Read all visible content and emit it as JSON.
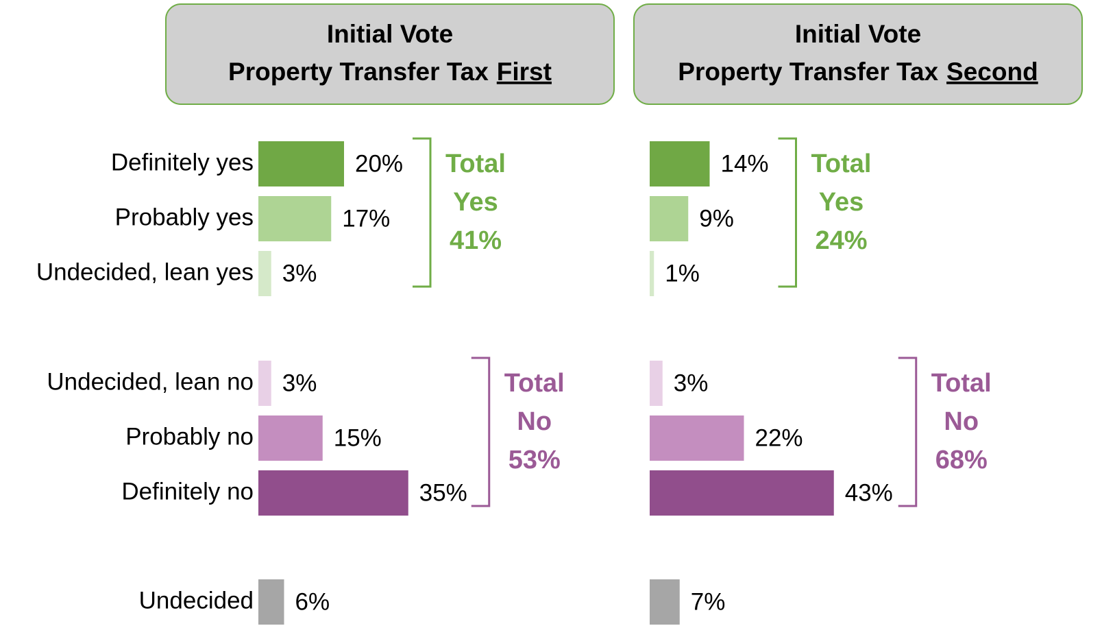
{
  "chart_data": [
    {
      "type": "bar",
      "title": "Initial Vote",
      "subtitle": "Property Transfer Tax",
      "subtitle_emphasis": "First",
      "categories": [
        "Definitely yes",
        "Probably yes",
        "Undecided, lean yes",
        "Undecided, lean no",
        "Probably no",
        "Definitely no",
        "Undecided"
      ],
      "values": [
        20,
        17,
        3,
        3,
        15,
        35,
        6
      ],
      "value_labels": [
        "20%",
        "17%",
        "3%",
        "3%",
        "15%",
        "35%",
        "6%"
      ],
      "colors": [
        "#70a845",
        "#aed494",
        "#d5e9c9",
        "#e8d0e6",
        "#c48ebf",
        "#914e8c",
        "#a6a6a6"
      ],
      "totals": [
        {
          "lines": [
            "Total",
            "Yes"
          ],
          "value": 41,
          "value_label": "41%",
          "color": "#70ad47"
        },
        {
          "lines": [
            "Total",
            "No"
          ],
          "value": 53,
          "value_label": "53%",
          "color": "#9b5a96"
        }
      ]
    },
    {
      "type": "bar",
      "title": "Initial Vote",
      "subtitle": "Property Transfer Tax",
      "subtitle_emphasis": "Second",
      "values": [
        14,
        9,
        1,
        3,
        22,
        43,
        7
      ],
      "value_labels": [
        "14%",
        "9%",
        "1%",
        "3%",
        "22%",
        "43%",
        "7%"
      ],
      "colors": [
        "#70a845",
        "#aed494",
        "#d5e9c9",
        "#e8d0e6",
        "#c48ebf",
        "#914e8c",
        "#a6a6a6"
      ],
      "totals": [
        {
          "lines": [
            "Total",
            "Yes"
          ],
          "value": 24,
          "value_label": "24%",
          "color": "#70ad47"
        },
        {
          "lines": [
            "Total",
            "No"
          ],
          "value": 68,
          "value_label": "68%",
          "color": "#9b5a96"
        }
      ]
    }
  ]
}
